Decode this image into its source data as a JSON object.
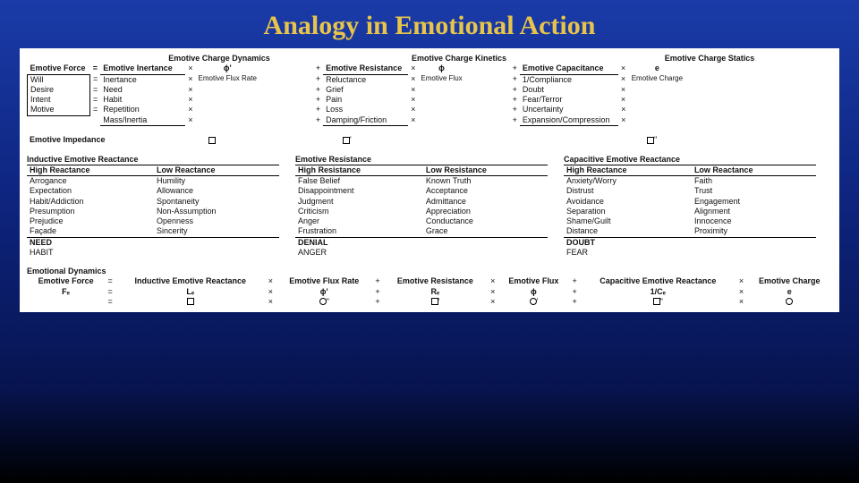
{
  "title": "Analogy in Emotional Action",
  "top": {
    "sections": [
      "Emotive Charge Dynamics",
      "Emotive Charge Kinetics",
      "Emotive Charge Statics"
    ],
    "forceLabel": "Emotive Force",
    "eq": "=",
    "times": "×",
    "plus": "+",
    "col1": {
      "header": "Emotive Inertance",
      "rate": "Emotive Flux Rate",
      "sym": "ϕ'",
      "rows": [
        "Inertance",
        "Need",
        "Habit",
        "Repetition",
        "Mass/Inertia"
      ]
    },
    "col2": {
      "header": "Emotive Resistance",
      "rate": "Emotive Flux",
      "sym": "ϕ",
      "rows": [
        "Reluctance",
        "Grief",
        "Pain",
        "Loss",
        "Damping/Friction"
      ]
    },
    "col3": {
      "header": "Emotive Capacitance",
      "rate": "Emotive Charge",
      "sym": "e",
      "rows": [
        "1/Compliance",
        "Doubt",
        "Fear/Terror",
        "Uncertainty",
        "Expansion/Compression"
      ]
    },
    "forces": [
      "Will",
      "Desire",
      "Intent",
      "Motive"
    ]
  },
  "impedance": {
    "label": "Emotive Impedance",
    "sq": "□",
    "sqp": "□'",
    "sqpp": "□''"
  },
  "react": {
    "groups": [
      {
        "title": "Inductive Emotive Reactance",
        "high": [
          "Arrogance",
          "Expectation",
          "Habit/Addiction",
          "Presumption",
          "Prejudice",
          "Façade"
        ],
        "low": [
          "Humility",
          "Allowance",
          "Spontaneity",
          "Non-Assumption",
          "Openness",
          "Sincerity"
        ],
        "bold": "NEED",
        "sub": "HABIT"
      },
      {
        "title": "Emotive Resistance",
        "high": [
          "False Belief",
          "Disappointment",
          "Judgment",
          "Criticism",
          "Anger",
          "Frustration"
        ],
        "low": [
          "Known Truth",
          "Acceptance",
          "Admittance",
          "Appreciation",
          "Conductance",
          "Grace"
        ],
        "highH": "High Resistance",
        "lowH": "Low Resistance",
        "bold": "DENIAL",
        "sub": "ANGER"
      },
      {
        "title": "Capacitive Emotive Reactance",
        "high": [
          "Anxiety/Worry",
          "Distrust",
          "Avoidance",
          "Separation",
          "Shame/Guilt",
          "Distance"
        ],
        "low": [
          "Faith",
          "Trust",
          "Engagement",
          "Alignment",
          "Innocence",
          "Proximity"
        ],
        "bold": "DOUBT",
        "sub": "FEAR"
      }
    ],
    "highH": "High Reactance",
    "lowH": "Low Reactance"
  },
  "dyn": {
    "title": "Emotional Dynamics",
    "row1": [
      "Emotive Force",
      "=",
      "Inductive Emotive Reactance",
      "×",
      "Emotive Flux Rate",
      "+",
      "Emotive Resistance",
      "×",
      "Emotive Flux",
      "+",
      "Capacitive Emotive Reactance",
      "×",
      "Emotive Charge"
    ],
    "row2": [
      "Fₑ",
      "=",
      "Lₑ",
      "×",
      "ϕ'",
      "+",
      "Rₑ",
      "×",
      "ϕ",
      "+",
      "1/Cₑ",
      "×",
      "e"
    ],
    "row3": [
      "",
      "=",
      "□",
      "×",
      "○''",
      "+",
      "□'",
      "×",
      "○'",
      "+",
      "□''",
      "×",
      "○"
    ]
  }
}
